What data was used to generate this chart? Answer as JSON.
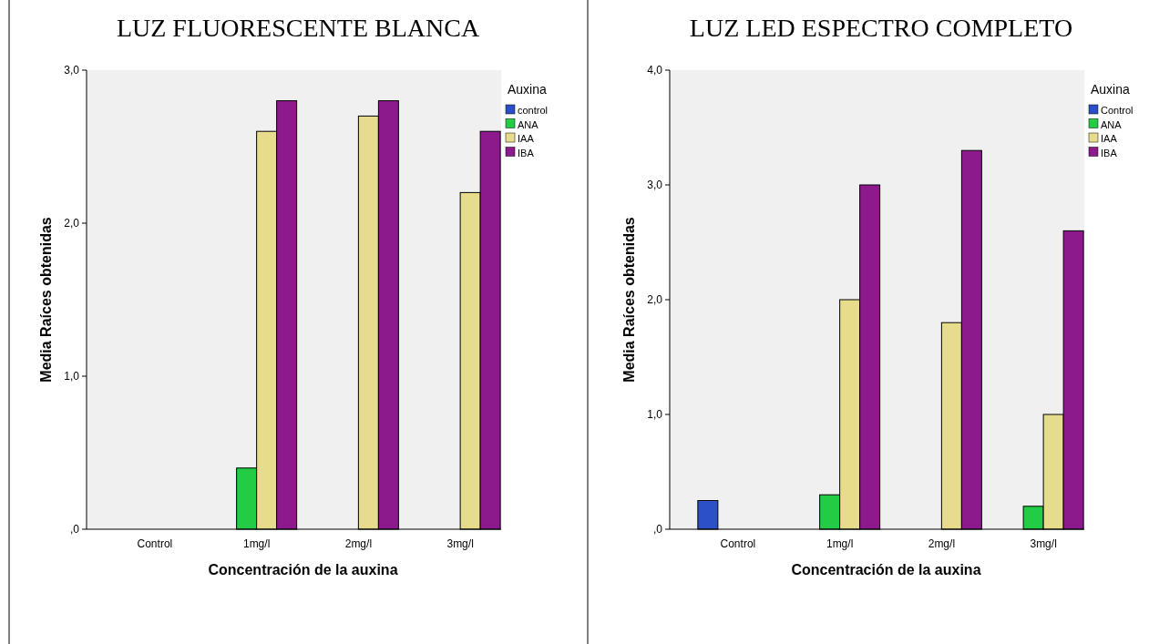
{
  "chart_data": [
    {
      "type": "bar",
      "title": "LUZ FLUORESCENTE BLANCA",
      "xlabel": "Concentración de la auxina",
      "ylabel": "Media Raíces obtenidas",
      "legend_title": "Auxina",
      "legend": "top right",
      "categories": [
        "Control",
        "1mg/l",
        "2mg/l",
        "3mg/l"
      ],
      "series": [
        {
          "name": "control",
          "color": "#2b50c8",
          "values": [
            null,
            null,
            null,
            null
          ]
        },
        {
          "name": "ANA",
          "color": "#22cc44",
          "values": [
            null,
            0.4,
            null,
            null
          ]
        },
        {
          "name": "IAA",
          "color": "#e6dc8c",
          "values": [
            null,
            2.6,
            2.7,
            2.2
          ]
        },
        {
          "name": "IBA",
          "color": "#8c1a8c",
          "values": [
            null,
            2.8,
            2.8,
            2.6
          ]
        }
      ],
      "ylim": [
        0,
        3.0
      ],
      "yticks": [
        {
          "value": 0,
          "label": ",0"
        },
        {
          "value": 1,
          "label": "1,0"
        },
        {
          "value": 2,
          "label": "2,0"
        },
        {
          "value": 3,
          "label": "3,0"
        }
      ]
    },
    {
      "type": "bar",
      "title": "LUZ LED ESPECTRO COMPLETO",
      "xlabel": "Concentración de la auxina",
      "ylabel": "Media Raíces obtenidas",
      "legend_title": "Auxina",
      "legend": "top right",
      "categories": [
        "Control",
        "1mg/l",
        "2mg/l",
        "3mg/l"
      ],
      "series": [
        {
          "name": "Control",
          "color": "#2b50c8",
          "values": [
            0.25,
            null,
            null,
            null
          ]
        },
        {
          "name": "ANA",
          "color": "#22cc44",
          "values": [
            null,
            0.3,
            null,
            0.2
          ]
        },
        {
          "name": "IAA",
          "color": "#e6dc8c",
          "values": [
            null,
            2.0,
            1.8,
            1.0
          ]
        },
        {
          "name": "IBA",
          "color": "#8c1a8c",
          "values": [
            null,
            3.0,
            3.3,
            2.6
          ]
        }
      ],
      "ylim": [
        0,
        4.0
      ],
      "yticks": [
        {
          "value": 0,
          "label": ",0"
        },
        {
          "value": 1,
          "label": "1,0"
        },
        {
          "value": 2,
          "label": "2,0"
        },
        {
          "value": 3,
          "label": "3,0"
        },
        {
          "value": 4,
          "label": "4,0"
        }
      ]
    }
  ]
}
